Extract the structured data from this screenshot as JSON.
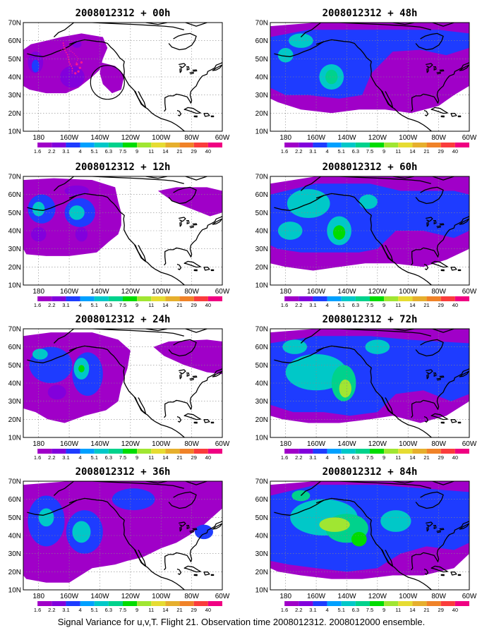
{
  "caption": "Signal Variance for u,v,T. Flight 21. Observation time 2008012312. 2008012000 ensemble.",
  "longitude_labels": [
    "180",
    "160W",
    "140W",
    "120W",
    "100W",
    "80W",
    "60W"
  ],
  "latitude_labels": [
    "10N",
    "20N",
    "30N",
    "40N",
    "50N",
    "60N",
    "70N"
  ],
  "colorbar": {
    "labels": [
      "1.6",
      "2.2",
      "3.1",
      "4",
      "5.1",
      "6.3",
      "7.5",
      "9",
      "11",
      "14",
      "21",
      "29",
      "40"
    ],
    "colors": [
      "#ffffff",
      "#a000c8",
      "#8200dc",
      "#1e3cff",
      "#00a0ff",
      "#00c8c8",
      "#00d28c",
      "#00dc00",
      "#a0e632",
      "#e6dc32",
      "#e6af2d",
      "#f08228",
      "#fa3c3c",
      "#f00082"
    ]
  },
  "panels": [
    {
      "title": "2008012312 + 00h",
      "lead_hours": 0
    },
    {
      "title": "2008012312 + 12h",
      "lead_hours": 12
    },
    {
      "title": "2008012312 + 24h",
      "lead_hours": 24
    },
    {
      "title": "2008012312 + 36h",
      "lead_hours": 36
    },
    {
      "title": "2008012312 + 48h",
      "lead_hours": 48
    },
    {
      "title": "2008012312 + 60h",
      "lead_hours": 60
    },
    {
      "title": "2008012312 + 72h",
      "lead_hours": 72
    },
    {
      "title": "2008012312 + 84h",
      "lead_hours": 84
    }
  ],
  "map_extent": {
    "lon_range": [
      "170E",
      "60W"
    ],
    "lat_range": [
      "10N",
      "70N"
    ]
  }
}
